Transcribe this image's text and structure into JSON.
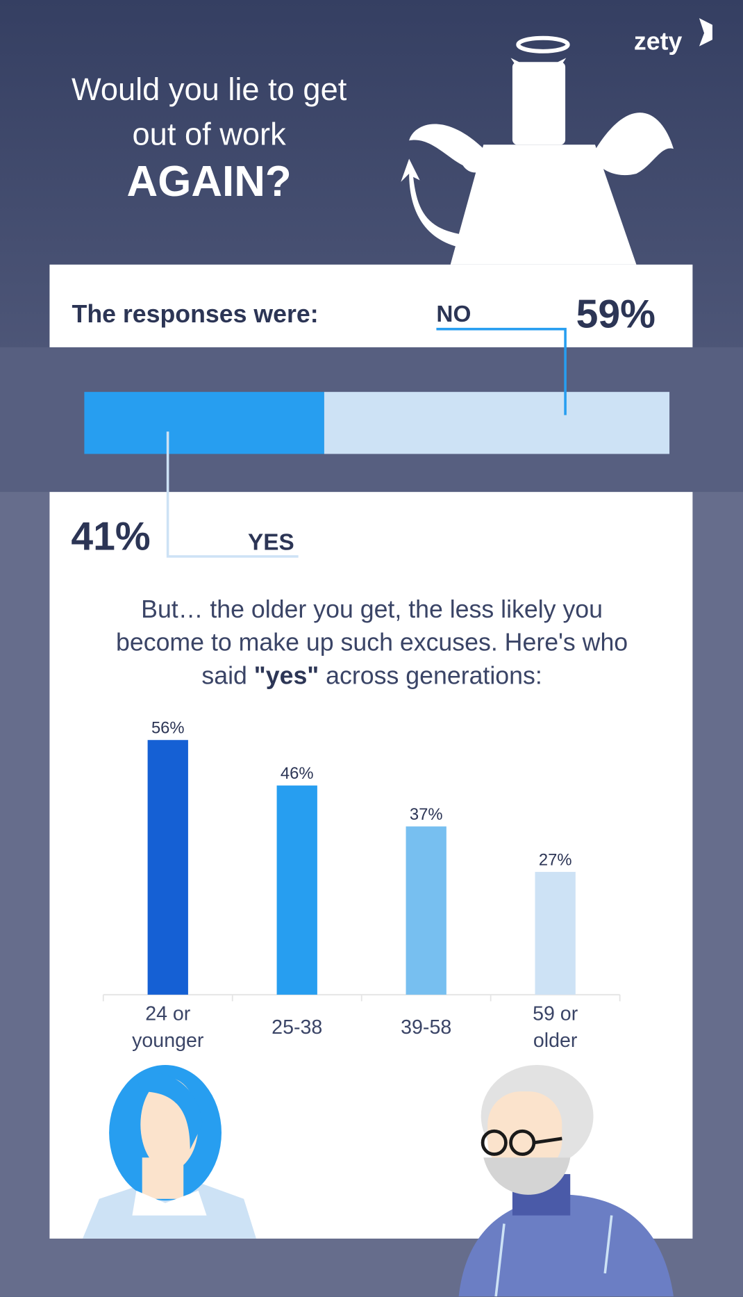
{
  "header": {
    "logo": "zety",
    "title_lines": [
      "Would you lie to get",
      "out of work"
    ],
    "title_emphasis": "AGAIN?"
  },
  "responses": {
    "label": "The responses were:",
    "no": {
      "label": "NO",
      "value": 59,
      "value_label": "59%",
      "color": "#cde2f5"
    },
    "yes": {
      "label": "YES",
      "value": 41,
      "value_label": "41%",
      "color": "#279ef0"
    }
  },
  "intro": {
    "parts": [
      "But… the older you get, the less likely you become to make up such excuses. Here's who said ",
      "\"yes\"",
      " across generations:"
    ]
  },
  "chart_data": {
    "type": "bar",
    "categories": [
      "24 or younger",
      "25-38",
      "39-58",
      "59 or older"
    ],
    "values": [
      56,
      46,
      37,
      27
    ],
    "value_labels": [
      "56%",
      "46%",
      "37%",
      "27%"
    ],
    "colors": [
      "#1560d4",
      "#279ef0",
      "#77bff0",
      "#cde2f5"
    ]
  }
}
